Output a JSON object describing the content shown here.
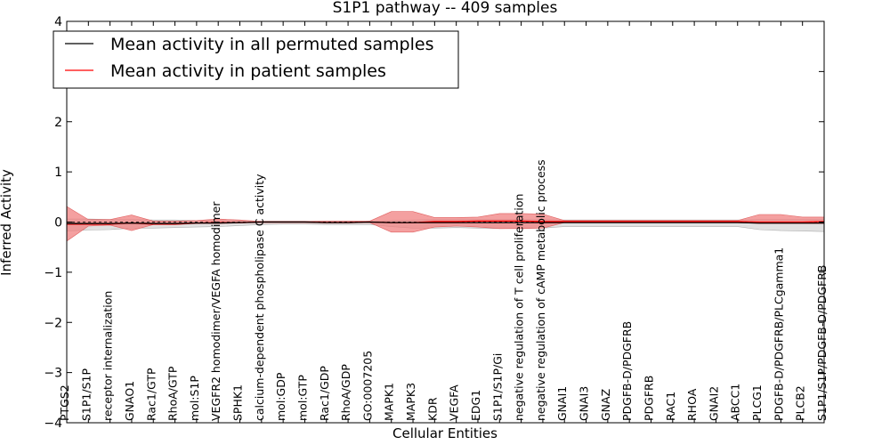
{
  "chart_data": {
    "type": "line",
    "title": "S1P1 pathway -- 409 samples",
    "xlabel": "Cellular Entities",
    "ylabel": "Inferred Activity",
    "ylim": [
      -4,
      4
    ],
    "yticks": [
      -4,
      -3,
      -2,
      -1,
      0,
      1,
      2,
      3,
      4
    ],
    "ytick_labels": [
      "−4",
      "−3",
      "−2",
      "−1",
      "0",
      "1",
      "2",
      "3",
      "4"
    ],
    "legend_position": "upper-left",
    "colors": {
      "permuted": "#000000",
      "patient": "#ff0000",
      "permuted_band": "#d9d9d9",
      "patient_band": "#f08080"
    },
    "categories": [
      "PTGS2",
      "S1P1/S1P",
      "receptor internalization",
      "GNAO1",
      "Rac1/GTP",
      "RhoA/GTP",
      "mol:S1P",
      "VEGFR2 homodimer/VEGFA homodimer",
      "SPHK1",
      "calcium-dependent phospholipase C activity",
      "mol:GDP",
      "mol:GTP",
      "Rac1/GDP",
      "RhoA/GDP",
      "GO:0007205",
      "MAPK1",
      "MAPK3",
      "KDR",
      "VEGFA",
      "EDG1",
      "S1P1/S1P/Gi",
      "negative regulation of T cell proliferation",
      "negative regulation of cAMP metabolic process",
      "GNAI1",
      "GNAI3",
      "GNAZ",
      "PDGFB-D/PDGFRB",
      "PDGFRB",
      "RAC1",
      "RHOA",
      "GNAI2",
      "ABCC1",
      "PLCG1",
      "PDGFB-D/PDGFRB/PLCgamma1",
      "PLCB2",
      "S1P1/S1P/PDGFB-D/PDGFRB"
    ],
    "series": [
      {
        "name": "Mean activity in all permuted samples",
        "values": [
          -0.03,
          -0.03,
          -0.03,
          -0.02,
          -0.03,
          -0.03,
          -0.02,
          -0.02,
          -0.01,
          0.0,
          0.0,
          0.0,
          -0.01,
          -0.01,
          0.0,
          -0.01,
          -0.01,
          -0.01,
          -0.01,
          -0.01,
          -0.01,
          -0.01,
          -0.01,
          -0.01,
          -0.01,
          -0.01,
          -0.01,
          -0.01,
          -0.01,
          -0.01,
          -0.01,
          -0.01,
          -0.02,
          -0.02,
          -0.02,
          -0.02
        ],
        "lower": [
          -0.18,
          -0.16,
          -0.15,
          -0.12,
          -0.12,
          -0.11,
          -0.1,
          -0.09,
          -0.07,
          -0.05,
          -0.04,
          -0.04,
          -0.05,
          -0.05,
          -0.05,
          -0.09,
          -0.12,
          -0.12,
          -0.11,
          -0.12,
          -0.13,
          -0.12,
          -0.12,
          -0.09,
          -0.09,
          -0.09,
          -0.09,
          -0.09,
          -0.09,
          -0.09,
          -0.09,
          -0.09,
          -0.15,
          -0.17,
          -0.18,
          -0.19
        ],
        "upper": [
          0.06,
          0.06,
          0.05,
          0.05,
          0.04,
          0.04,
          0.03,
          0.03,
          0.03,
          0.02,
          0.02,
          0.02,
          0.02,
          0.02,
          0.02,
          0.03,
          0.04,
          0.05,
          0.05,
          0.05,
          0.05,
          0.05,
          0.05,
          0.04,
          0.04,
          0.04,
          0.04,
          0.04,
          0.04,
          0.04,
          0.04,
          0.04,
          0.05,
          0.05,
          0.05,
          0.05
        ]
      },
      {
        "name": "Mean activity in patient samples",
        "values": [
          -0.04,
          -0.04,
          -0.04,
          -0.02,
          -0.04,
          -0.04,
          -0.02,
          -0.01,
          -0.01,
          0.0,
          0.0,
          0.0,
          -0.01,
          -0.01,
          0.0,
          -0.01,
          -0.01,
          0.01,
          0.01,
          0.02,
          0.02,
          0.02,
          0.01,
          0.01,
          0.01,
          0.01,
          0.01,
          0.01,
          0.01,
          0.01,
          0.01,
          0.01,
          0.0,
          0.0,
          0.0,
          0.01
        ],
        "lower": [
          -0.38,
          -0.08,
          -0.06,
          -0.17,
          -0.05,
          -0.05,
          -0.03,
          -0.03,
          -0.02,
          -0.01,
          -0.01,
          -0.01,
          -0.02,
          -0.02,
          -0.01,
          -0.2,
          -0.2,
          -0.1,
          -0.08,
          -0.1,
          -0.13,
          -0.13,
          -0.12,
          -0.01,
          -0.01,
          -0.01,
          -0.01,
          -0.01,
          -0.01,
          -0.01,
          -0.01,
          -0.01,
          -0.03,
          -0.03,
          -0.03,
          -0.03
        ],
        "upper": [
          0.31,
          0.05,
          0.05,
          0.14,
          0.02,
          0.02,
          0.03,
          0.06,
          0.04,
          0.01,
          0.01,
          0.01,
          0.02,
          0.02,
          0.02,
          0.21,
          0.21,
          0.09,
          0.09,
          0.1,
          0.17,
          0.17,
          0.16,
          0.03,
          0.03,
          0.03,
          0.03,
          0.03,
          0.03,
          0.03,
          0.03,
          0.03,
          0.15,
          0.15,
          0.1,
          0.1
        ]
      }
    ]
  }
}
